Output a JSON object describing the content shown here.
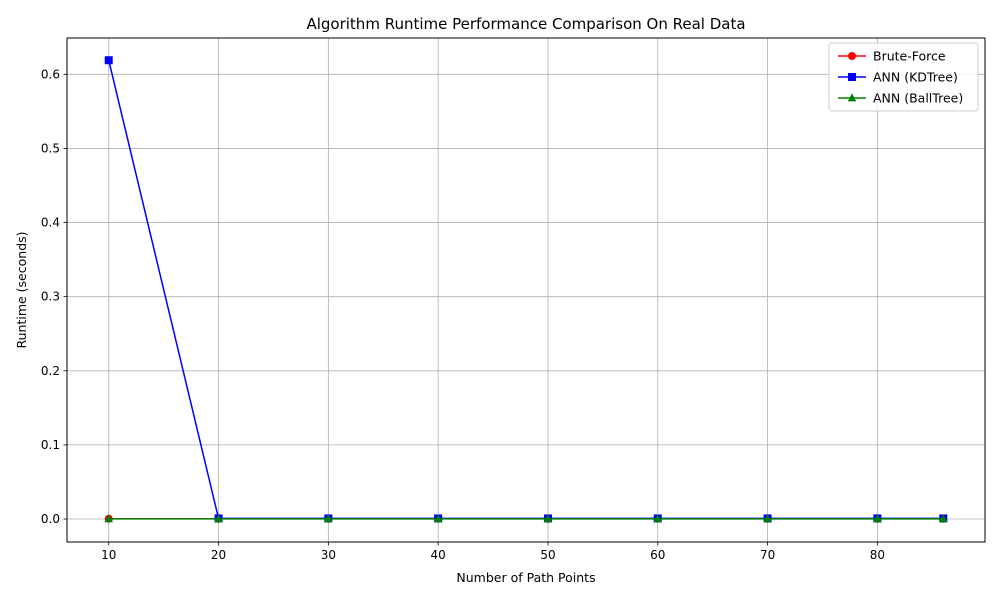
{
  "chart_data": {
    "type": "line",
    "title": "Algorithm Runtime Performance Comparison On Real Data",
    "xlabel": "Number of Path Points",
    "ylabel": "Runtime (seconds)",
    "xlim": [
      6.2,
      89.8
    ],
    "ylim": [
      -0.031,
      0.649
    ],
    "x_ticks": [
      10,
      20,
      30,
      40,
      50,
      60,
      70,
      80
    ],
    "x_tick_labels": [
      "10",
      "20",
      "30",
      "40",
      "50",
      "60",
      "70",
      "80"
    ],
    "y_ticks": [
      0.0,
      0.1,
      0.2,
      0.3,
      0.4,
      0.5,
      0.6
    ],
    "y_tick_labels": [
      "0.0",
      "0.1",
      "0.2",
      "0.3",
      "0.4",
      "0.5",
      "0.6"
    ],
    "grid": true,
    "legend_position": "top-right",
    "x": [
      10,
      20,
      30,
      40,
      50,
      60,
      70,
      80,
      86
    ],
    "series": [
      {
        "name": "Brute-Force",
        "color": "#ff0000",
        "marker": "circle",
        "values": [
          0.0004,
          0.0003,
          0.0003,
          0.0003,
          0.0003,
          0.0003,
          0.0003,
          0.0003,
          0.0003
        ]
      },
      {
        "name": "ANN (KDTree)",
        "color": "#0000ff",
        "marker": "square",
        "values": [
          0.619,
          0.0008,
          0.0008,
          0.0008,
          0.0008,
          0.0008,
          0.0008,
          0.0008,
          0.0008
        ]
      },
      {
        "name": "ANN (BallTree)",
        "color": "#008000",
        "marker": "triangle",
        "values": [
          0.0002,
          0.0002,
          0.0002,
          0.0002,
          0.0002,
          0.0002,
          0.0002,
          0.0002,
          0.0002
        ]
      }
    ]
  }
}
